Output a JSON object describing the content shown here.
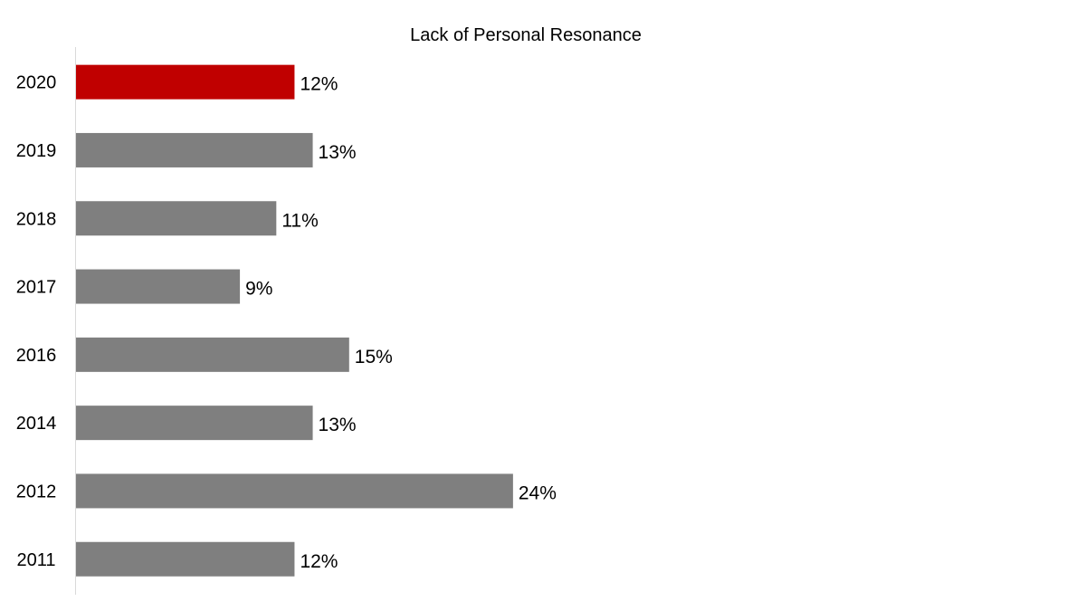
{
  "chart_data": {
    "type": "bar",
    "orientation": "horizontal",
    "title": "Lack of Personal Resonance",
    "categories": [
      "2020",
      "2019",
      "2018",
      "2017",
      "2016",
      "2014",
      "2012",
      "2011"
    ],
    "values": [
      12,
      13,
      11,
      9,
      15,
      13,
      24,
      12
    ],
    "value_labels": [
      "12%",
      "13%",
      "11%",
      "9%",
      "15%",
      "13%",
      "24%",
      "12%"
    ],
    "unit": "%",
    "xlim": [
      0,
      50
    ],
    "grid": false,
    "legend": "none",
    "colors": {
      "default": "#7f7f7f",
      "highlight": "#c00000",
      "axis": "#d9d9d9"
    },
    "highlight_category": "2020"
  }
}
